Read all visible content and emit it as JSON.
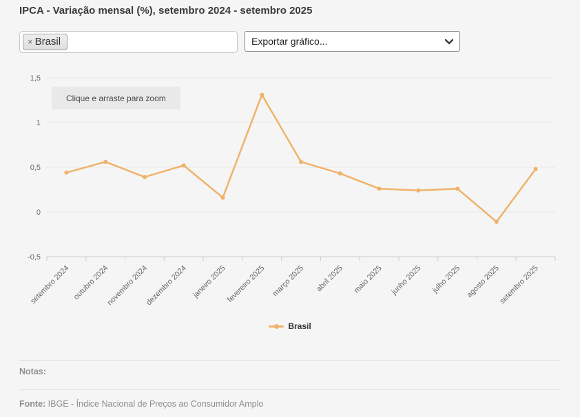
{
  "page": {
    "background": "#f5f5f5"
  },
  "header": {
    "title": "IPCA - Variação mensal (%), setembro 2024 - setembro 2025"
  },
  "filters": {
    "tag_input": {
      "tags": [
        {
          "label": "Brasil",
          "remove_icon": "×"
        }
      ]
    },
    "export_select": {
      "value": "Exportar gráfico..."
    }
  },
  "chart": {
    "zoom_hint": "Clique e arraste para zoom",
    "legend": [
      {
        "label": "Brasil",
        "color": "#f0b269"
      }
    ]
  },
  "chart_data": {
    "type": "line",
    "title": "IPCA - Variação mensal (%), setembro 2024 - setembro 2025",
    "categories": [
      "setembro 2024",
      "outubro 2024",
      "novembro 2024",
      "dezembro 2024",
      "janeiro 2025",
      "fevereiro 2025",
      "março 2025",
      "abril 2025",
      "maio 2025",
      "junho 2025",
      "julho 2025",
      "agosto 2025",
      "setembro 2025"
    ],
    "series": [
      {
        "name": "Brasil",
        "color": "#f0b269",
        "values": [
          0.44,
          0.56,
          0.39,
          0.52,
          0.16,
          1.31,
          0.56,
          0.43,
          0.26,
          0.24,
          0.26,
          -0.11,
          0.48
        ]
      }
    ],
    "xlabel": "",
    "ylabel": "",
    "ylim": [
      -0.5,
      1.5
    ],
    "yticks": [
      -0.5,
      0,
      0.5,
      1,
      1.5
    ],
    "ytick_labels": [
      "-0,5",
      "0",
      "0,5",
      "1",
      "1,5"
    ],
    "grid": true,
    "legend_position": "bottom",
    "gridline_color": "#e6e6e6",
    "axis_color": "#c9ccd6",
    "label_color": "#666666"
  },
  "footer": {
    "notes_label": "Notas:",
    "source_label": "Fonte:",
    "source_text": " IBGE - Índice Nacional de Preços ao Consumidor Amplo"
  }
}
